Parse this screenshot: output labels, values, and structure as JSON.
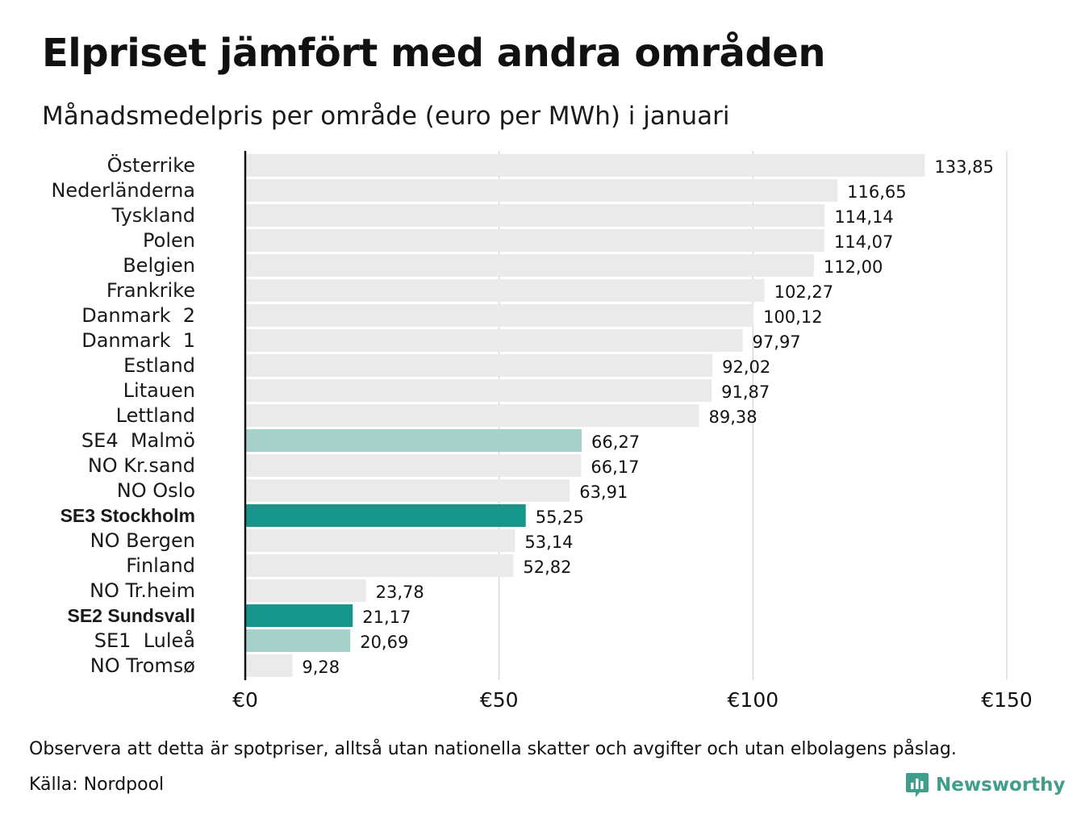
{
  "title": "Elpriset jämfört med andra områden",
  "subtitle": "Månadsmedelpris per område (euro per MWh) i januari",
  "note": "Observera att detta är spotpriser, alltså utan nationella skatter och avgifter och utan elbolagens påslag.",
  "source": "Källa: Nordpool",
  "logo": {
    "text": "Newsworthy",
    "icon": "newsworthy-logo-icon"
  },
  "colors": {
    "bar_default": "#eaeaea",
    "bar_light_teal": "#a6d1ca",
    "bar_dark_teal": "#16968a",
    "axis": "#111111",
    "grid": "#d2d2d2",
    "logo": "#3f9e8c"
  },
  "chart_data": {
    "type": "bar",
    "orientation": "horizontal",
    "xlim": [
      0,
      150
    ],
    "x_ticks": [
      0,
      50,
      100,
      150
    ],
    "x_tick_labels": [
      "€0",
      "€50",
      "€100",
      "€150"
    ],
    "grid": true,
    "categories": [
      "Österrike",
      "Nederländerna",
      "Tyskland",
      "Polen",
      "Belgien",
      "Frankrike",
      "Danmark  2",
      "Danmark  1",
      "Estland",
      "Litauen",
      "Lettland",
      "SE4  Malmö",
      "NO Kr.sand",
      "NO Oslo",
      "SE3 Stockholm",
      "NO Bergen",
      "Finland",
      "NO Tr.heim",
      "SE2 Sundsvall",
      "SE1  Luleå",
      "NO Tromsø"
    ],
    "values": [
      133.85,
      116.65,
      114.14,
      114.07,
      112.0,
      102.27,
      100.12,
      97.97,
      92.02,
      91.87,
      89.38,
      66.27,
      66.17,
      63.91,
      55.25,
      53.14,
      52.82,
      23.78,
      21.17,
      20.69,
      9.28
    ],
    "value_labels": [
      "133,85",
      "116,65",
      "114,14",
      "114,07",
      "112,00",
      "102,27",
      "100,12",
      "97,97",
      "92,02",
      "91,87",
      "89,38",
      "66,27",
      "66,17",
      "63,91",
      "55,25",
      "53,14",
      "52,82",
      "23,78",
      "21,17",
      "20,69",
      "9,28"
    ],
    "highlight": [
      "default",
      "default",
      "default",
      "default",
      "default",
      "default",
      "default",
      "default",
      "default",
      "default",
      "default",
      "light",
      "default",
      "default",
      "dark",
      "default",
      "default",
      "default",
      "dark",
      "light",
      "default"
    ],
    "bold_labels": [
      "SE3 Stockholm",
      "SE2 Sundsvall"
    ]
  }
}
